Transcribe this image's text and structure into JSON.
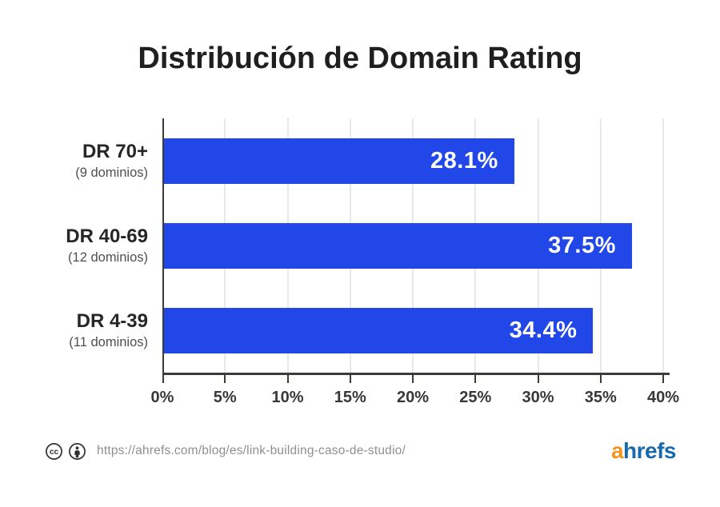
{
  "title": "Distribución de Domain Rating",
  "chart_data": {
    "type": "bar",
    "orientation": "horizontal",
    "title": "Distribución de Domain Rating",
    "categories": [
      "DR 70+",
      "DR 40-69",
      "DR 4-39"
    ],
    "category_notes": [
      "(9 dominios)",
      "(12 dominios)",
      "(11 dominios)"
    ],
    "values": [
      28.1,
      37.5,
      34.4
    ],
    "value_labels": [
      "28.1%",
      "37.5%",
      "34.4%"
    ],
    "xlim": [
      0,
      40
    ],
    "xticks": [
      0,
      5,
      10,
      15,
      20,
      25,
      30,
      35,
      40
    ],
    "xtick_labels": [
      "0%",
      "5%",
      "10%",
      "15%",
      "20%",
      "25%",
      "30%",
      "35%",
      "40%"
    ],
    "grid": true,
    "legend": false,
    "bar_color": "#2247e8",
    "value_label_color": "#ffffff"
  },
  "footer": {
    "license_icons": [
      "cc-icon",
      "cc-by-icon"
    ],
    "url": "https://ahrefs.com/blog/es/link-building-caso-de-studio/",
    "logo_prefix": "a",
    "logo_suffix": "hrefs"
  },
  "colors": {
    "bar": "#2247e8",
    "axis": "#3d3b37",
    "grid": "#e8e8e8",
    "title_text": "#1f1f1f",
    "category_text": "#262626",
    "note_text": "#4f4f4f",
    "tick_text": "#383838",
    "url_text": "#8f8f8f",
    "logo_orange": "#f8921e",
    "logo_blue": "#1669ad"
  }
}
